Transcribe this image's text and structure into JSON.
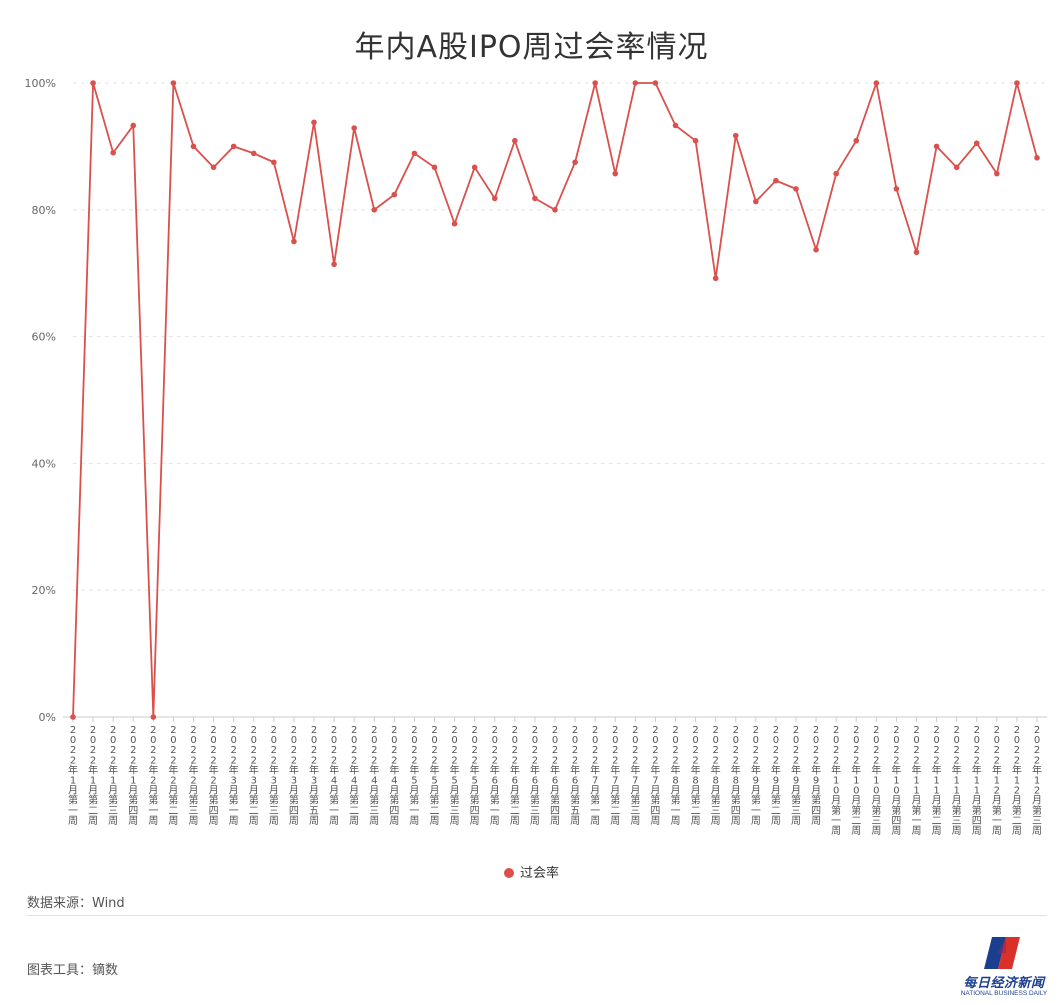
{
  "chart_data": {
    "type": "line",
    "title": "年内A股IPO周过会率情况",
    "xlabel": "",
    "ylabel": "",
    "ylim": [
      0,
      100
    ],
    "yticks": [
      "0%",
      "20%",
      "40%",
      "60%",
      "80%",
      "100%"
    ],
    "grid": true,
    "legend_position": "bottom",
    "categories": [
      "2022年1月第一周",
      "2022年1月第二周",
      "2022年1月第三周",
      "2022年1月第四周",
      "2022年2月第一周",
      "2022年2月第二周",
      "2022年2月第三周",
      "2022年2月第四周",
      "2022年3月第一周",
      "2022年3月第二周",
      "2022年3月第三周",
      "2022年3月第四周",
      "2022年3月第五周",
      "2022年4月第一周",
      "2022年4月第二周",
      "2022年4月第三周",
      "2022年4月第四周",
      "2022年5月第一周",
      "2022年5月第二周",
      "2022年5月第三周",
      "2022年5月第四周",
      "2022年6月第一周",
      "2022年6月第二周",
      "2022年6月第三周",
      "2022年6月第四周",
      "2022年6月第五周",
      "2022年7月第一周",
      "2022年7月第二周",
      "2022年7月第三周",
      "2022年7月第四周",
      "2022年8月第一周",
      "2022年8月第二周",
      "2022年8月第三周",
      "2022年8月第四周",
      "2022年9月第一周",
      "2022年9月第二周",
      "2022年9月第三周",
      "2022年9月第四周",
      "2022年10月第一周",
      "2022年10月第二周",
      "2022年10月第三周",
      "2022年10月第四周",
      "2022年11月第一周",
      "2022年11月第二周",
      "2022年11月第三周",
      "2022年11月第四周",
      "2022年12月第一周",
      "2022年12月第二周",
      "2022年12月第三周"
    ],
    "series": [
      {
        "name": "过会率",
        "color": "#d9504c",
        "values": [
          0,
          100,
          89,
          93.3,
          0,
          100,
          90,
          86.7,
          90,
          88.9,
          87.5,
          75,
          93.8,
          71.4,
          92.9,
          80,
          82.4,
          88.9,
          86.7,
          77.8,
          86.7,
          81.8,
          90.9,
          81.8,
          80,
          87.5,
          100,
          85.7,
          100,
          100,
          93.3,
          90.9,
          69.2,
          91.7,
          81.3,
          84.6,
          83.3,
          73.7,
          85.7,
          90.9,
          100,
          83.3,
          73.3,
          90,
          86.7,
          90.5,
          85.7,
          100,
          88.2
        ]
      }
    ]
  },
  "legend_label": "过会率",
  "source": "数据来源：Wind",
  "tool": "图表工具：镝数",
  "logo": {
    "cn": "每日经济新闻",
    "en": "NATIONAL BUSINESS DAILY",
    "color": "#1b3f8f",
    "accent": "#d9302a"
  }
}
